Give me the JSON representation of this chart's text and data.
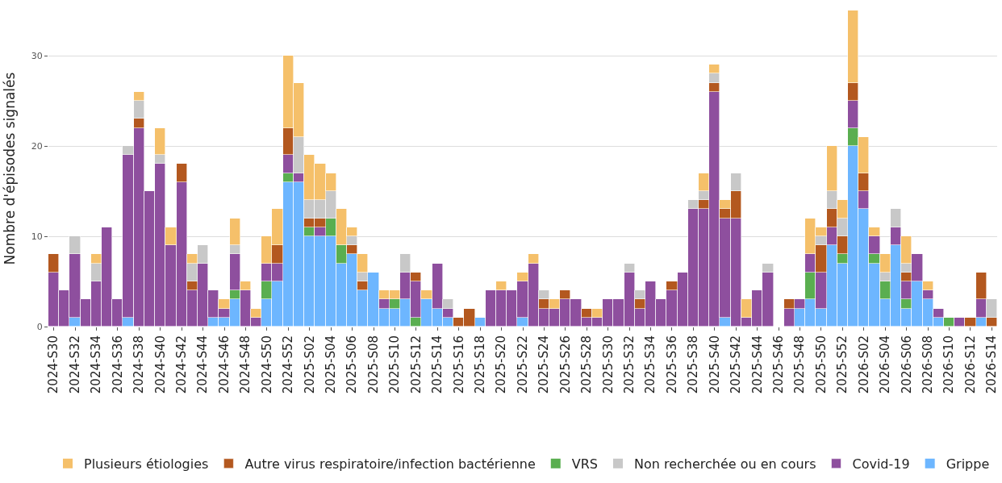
{
  "chart_data": {
    "type": "bar",
    "stacked": true,
    "ylabel": "Nombre d'épisodes signalés",
    "categories": [
      "2024-S30",
      null,
      "2024-S32",
      null,
      "2024-S34",
      null,
      "2024-S36",
      null,
      "2024-S38",
      null,
      "2024-S40",
      null,
      "2024-S42",
      null,
      "2024-S44",
      null,
      "2024-S46",
      null,
      "2024-S48",
      null,
      "2024-S50",
      null,
      "2024-S52",
      null,
      "2025-S02",
      null,
      "2025-S04",
      null,
      "2025-S06",
      null,
      "2025-S08",
      null,
      "2025-S10",
      null,
      "2025-S12",
      null,
      "2025-S14",
      null,
      "2025-S16",
      null,
      "2025-S18",
      null,
      "2025-S20",
      null,
      "2025-S22",
      null,
      "2025-S24",
      null,
      "2025-S26",
      null,
      "2025-S28",
      null,
      "2025-S30",
      null,
      "2025-S32",
      null,
      "2025-S34",
      null,
      "2025-S36",
      null,
      "2025-S38",
      null,
      "2025-S40",
      null,
      "2025-S42",
      null,
      "2025-S44",
      null,
      "2025-S46",
      null,
      "2025-S48",
      null,
      "2025-S50",
      null,
      "2025-S52",
      null,
      "2026-S02",
      null,
      "2026-S04",
      null,
      "2026-S06",
      null,
      "2026-S08",
      null,
      "2026-S10",
      null,
      "2026-S12",
      null,
      "2026-S14"
    ],
    "series": [
      {
        "name": "Grippe",
        "color": "#6db6ff",
        "values": [
          0,
          0,
          1,
          0,
          0,
          0,
          0,
          1,
          0,
          0,
          0,
          0,
          0,
          0,
          0,
          1,
          1,
          3,
          0,
          0,
          3,
          5,
          16,
          16,
          10,
          10,
          10,
          7,
          8,
          4,
          6,
          2,
          2,
          3,
          0,
          3,
          2,
          1,
          0,
          0,
          1,
          0,
          0,
          0,
          1,
          0,
          0,
          0,
          0,
          0,
          0,
          0,
          0,
          0,
          0,
          0,
          0,
          0,
          0,
          0,
          0,
          0,
          0,
          1,
          0,
          0,
          0,
          0,
          0,
          0,
          2,
          3,
          2,
          9,
          7,
          20,
          13,
          7,
          3,
          9,
          2,
          5,
          3,
          1,
          0,
          0,
          0,
          1,
          0
        ]
      },
      {
        "name": "VRS",
        "color": "#5aae50",
        "values": [
          0,
          0,
          0,
          0,
          0,
          0,
          0,
          0,
          0,
          0,
          0,
          0,
          0,
          0,
          0,
          0,
          0,
          1,
          0,
          0,
          2,
          0,
          1,
          0,
          1,
          0,
          2,
          2,
          0,
          0,
          0,
          0,
          1,
          0,
          1,
          0,
          0,
          0,
          0,
          0,
          0,
          0,
          0,
          0,
          0,
          0,
          0,
          0,
          0,
          0,
          0,
          0,
          0,
          0,
          0,
          0,
          0,
          0,
          0,
          0,
          0,
          0,
          0,
          0,
          0,
          0,
          0,
          0,
          0,
          0,
          0,
          3,
          0,
          0,
          1,
          2,
          0,
          1,
          2,
          0,
          1,
          0,
          0,
          0,
          1,
          0,
          0,
          0,
          0
        ]
      },
      {
        "name": "Covid-19",
        "color": "#8e4f9e",
        "values": [
          6,
          4,
          7,
          3,
          5,
          11,
          3,
          18,
          22,
          15,
          18,
          9,
          16,
          4,
          7,
          3,
          1,
          4,
          4,
          1,
          2,
          2,
          2,
          1,
          0,
          1,
          0,
          0,
          0,
          0,
          0,
          1,
          0,
          3,
          4,
          0,
          5,
          1,
          0,
          0,
          0,
          4,
          4,
          4,
          4,
          7,
          2,
          2,
          3,
          3,
          1,
          1,
          3,
          3,
          6,
          2,
          5,
          3,
          4,
          6,
          13,
          13,
          26,
          11,
          12,
          1,
          4,
          6,
          0,
          2,
          1,
          2,
          4,
          2,
          0,
          3,
          2,
          2,
          0,
          2,
          2,
          3,
          1,
          1,
          0,
          1,
          0,
          2,
          0
        ]
      },
      {
        "name": "Autre virus respiratoire/infection bactérienne",
        "color": "#b3581f",
        "values": [
          2,
          0,
          0,
          0,
          0,
          0,
          0,
          0,
          1,
          0,
          0,
          0,
          2,
          1,
          0,
          0,
          0,
          0,
          0,
          0,
          0,
          2,
          3,
          0,
          1,
          1,
          0,
          0,
          1,
          1,
          0,
          0,
          0,
          0,
          1,
          0,
          0,
          0,
          1,
          2,
          0,
          0,
          0,
          0,
          0,
          0,
          1,
          0,
          1,
          0,
          1,
          0,
          0,
          0,
          0,
          1,
          0,
          0,
          1,
          0,
          0,
          1,
          1,
          1,
          3,
          0,
          0,
          0,
          0,
          1,
          0,
          0,
          3,
          2,
          2,
          2,
          2,
          0,
          0,
          0,
          1,
          0,
          0,
          0,
          0,
          0,
          1,
          3,
          1
        ]
      },
      {
        "name": "Non recherchée ou en cours",
        "color": "#c8c8c8",
        "values": [
          0,
          0,
          2,
          0,
          2,
          0,
          0,
          1,
          2,
          0,
          1,
          0,
          0,
          2,
          2,
          0,
          0,
          1,
          0,
          0,
          0,
          0,
          0,
          4,
          2,
          2,
          3,
          0,
          1,
          1,
          0,
          0,
          0,
          2,
          0,
          0,
          0,
          1,
          0,
          0,
          0,
          0,
          0,
          0,
          0,
          0,
          1,
          0,
          0,
          0,
          0,
          0,
          0,
          0,
          1,
          1,
          0,
          0,
          0,
          0,
          1,
          1,
          1,
          0,
          2,
          0,
          0,
          1,
          0,
          0,
          0,
          0,
          1,
          2,
          2,
          0,
          0,
          0,
          1,
          2,
          1,
          0,
          0,
          0,
          0,
          0,
          0,
          0,
          2
        ]
      },
      {
        "name": "Plusieurs étiologies",
        "color": "#f5c06a",
        "values": [
          0,
          0,
          0,
          0,
          1,
          0,
          0,
          0,
          1,
          0,
          3,
          2,
          0,
          1,
          0,
          0,
          1,
          3,
          1,
          1,
          3,
          4,
          8,
          6,
          5,
          4,
          2,
          4,
          1,
          2,
          0,
          1,
          1,
          0,
          0,
          1,
          0,
          0,
          0,
          0,
          0,
          0,
          1,
          0,
          1,
          1,
          0,
          1,
          0,
          0,
          0,
          1,
          0,
          0,
          0,
          0,
          0,
          0,
          0,
          0,
          0,
          2,
          1,
          1,
          0,
          2,
          0,
          0,
          0,
          0,
          0,
          4,
          1,
          5,
          2,
          8,
          4,
          1,
          2,
          0,
          3,
          0,
          1,
          0,
          0,
          0,
          0,
          0,
          0
        ]
      }
    ],
    "ylim": [
      0,
      35
    ],
    "yticks": [
      0,
      10,
      20,
      30
    ],
    "grid": "y",
    "legend": "bottom"
  }
}
